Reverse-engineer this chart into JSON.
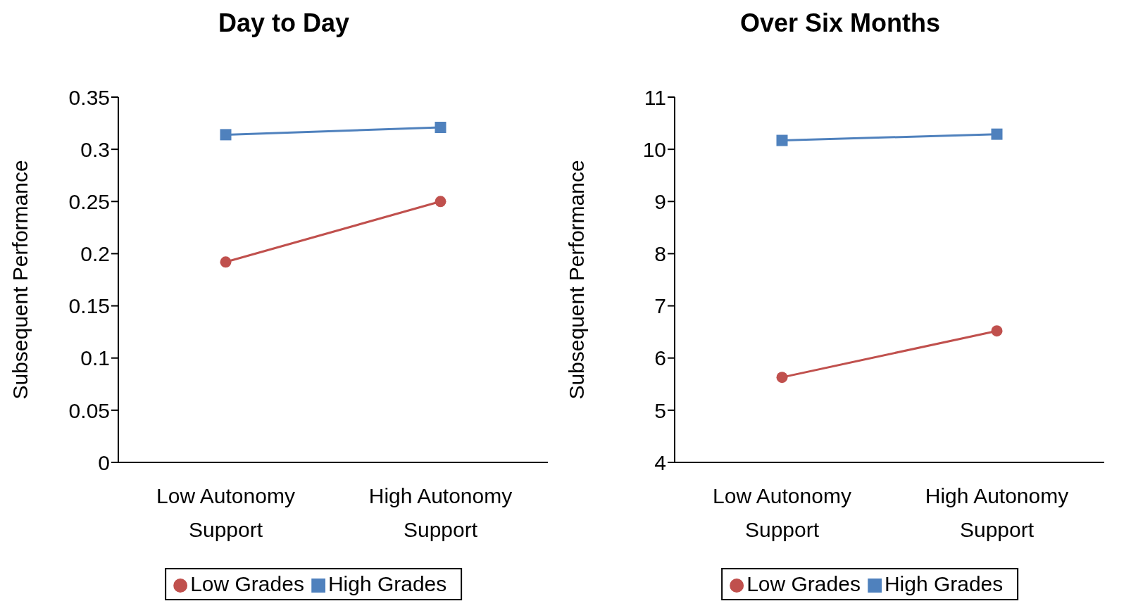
{
  "chart_data": [
    {
      "type": "line",
      "title": "Day to Day",
      "ylabel": "Subsequent Performance",
      "categories": [
        "Low Autonomy Support",
        "High Autonomy Support"
      ],
      "ylim": [
        0,
        0.35
      ],
      "yticks": [
        0,
        0.05,
        0.1,
        0.15,
        0.2,
        0.25,
        0.3,
        0.35
      ],
      "grid": false,
      "legend": "bottom",
      "series": [
        {
          "name": "Low Grades",
          "color": "#c0504d",
          "marker": "circle",
          "values": [
            0.192,
            0.25
          ]
        },
        {
          "name": "High Grades",
          "color": "#4f81bd",
          "marker": "square",
          "values": [
            0.314,
            0.321
          ]
        }
      ]
    },
    {
      "type": "line",
      "title": "Over Six Months",
      "ylabel": "Subsequent Performance",
      "categories": [
        "Low Autonomy Support",
        "High Autonomy Support"
      ],
      "ylim": [
        4,
        11
      ],
      "yticks": [
        4,
        5,
        6,
        7,
        8,
        9,
        10,
        11
      ],
      "grid": false,
      "legend": "bottom",
      "series": [
        {
          "name": "Low Grades",
          "color": "#c0504d",
          "marker": "circle",
          "values": [
            5.63,
            6.52
          ]
        },
        {
          "name": "High Grades",
          "color": "#4f81bd",
          "marker": "square",
          "values": [
            10.17,
            10.29
          ]
        }
      ]
    }
  ]
}
